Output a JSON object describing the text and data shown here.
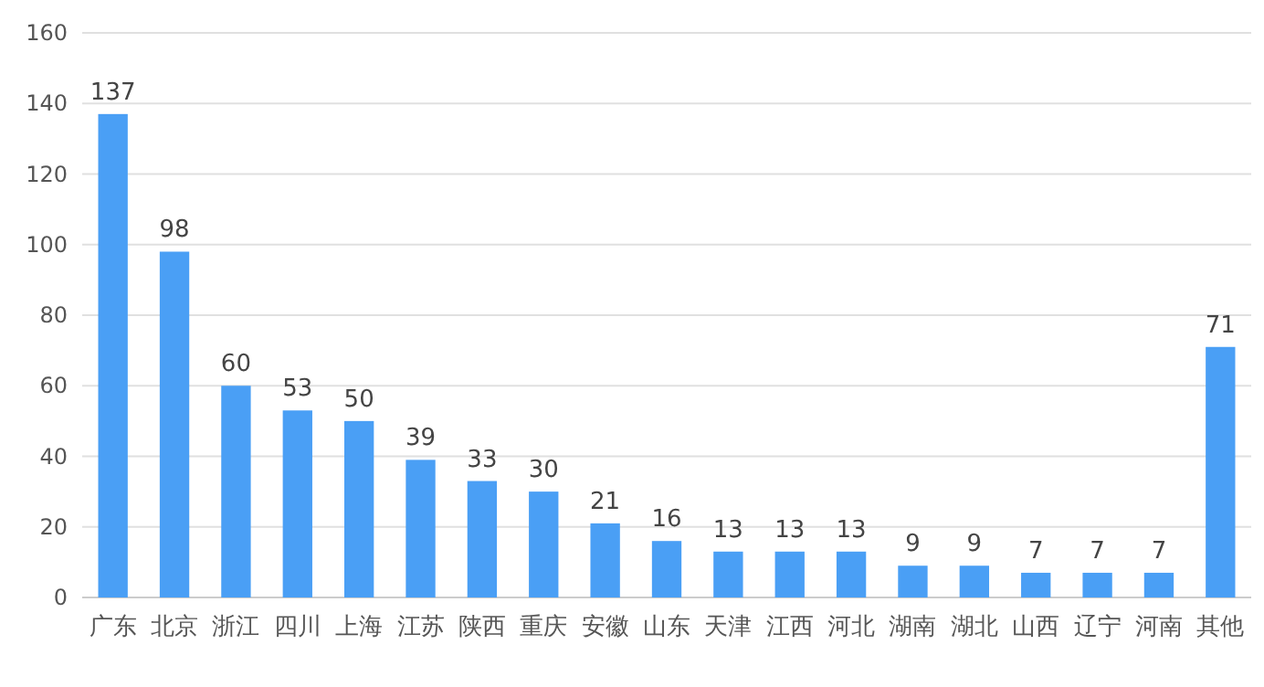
{
  "chart_data": {
    "type": "bar",
    "categories": [
      "广东",
      "北京",
      "浙江",
      "四川",
      "上海",
      "江苏",
      "陕西",
      "重庆",
      "安徽",
      "山东",
      "天津",
      "江西",
      "河北",
      "湖南",
      "湖北",
      "山西",
      "辽宁",
      "河南",
      "其他"
    ],
    "values": [
      137,
      98,
      60,
      53,
      50,
      39,
      33,
      30,
      21,
      16,
      13,
      13,
      13,
      9,
      9,
      7,
      7,
      7,
      71
    ],
    "color": "#4a9ff5",
    "ylim": [
      0,
      160
    ],
    "yticks": [
      0,
      20,
      40,
      60,
      80,
      100,
      120,
      140,
      160
    ],
    "grid": "y",
    "data_labels": true
  }
}
